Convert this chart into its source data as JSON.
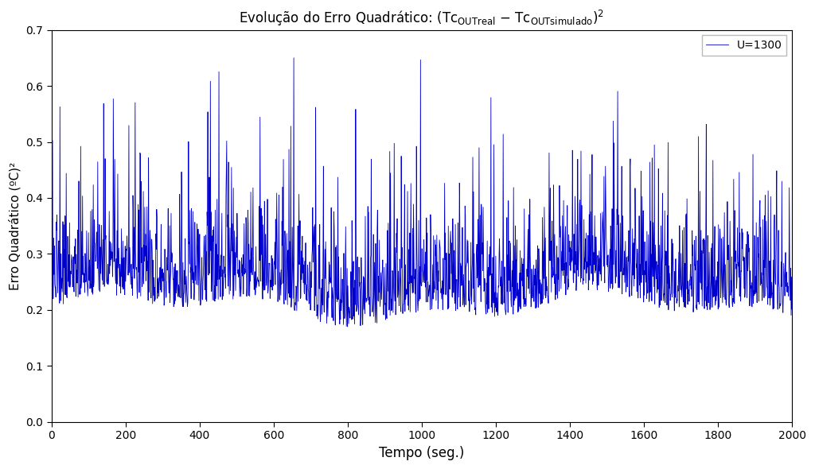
{
  "xlabel": "Tempo (seg.)",
  "ylabel": "Erro Quadrático (ºC)²",
  "xlim": [
    0,
    2000
  ],
  "ylim": [
    0,
    0.7
  ],
  "yticks": [
    0,
    0.1,
    0.2,
    0.3,
    0.4,
    0.5,
    0.6,
    0.7
  ],
  "xticks": [
    0,
    200,
    400,
    600,
    800,
    1000,
    1200,
    1400,
    1600,
    1800,
    2000
  ],
  "line_color": "#0000CC",
  "line_label": "U=1300",
  "line_width": 0.6,
  "background_color": "#FFFFFF",
  "n_points": 2000,
  "seed": 42,
  "figsize": [
    10.24,
    5.9
  ],
  "dpi": 100
}
